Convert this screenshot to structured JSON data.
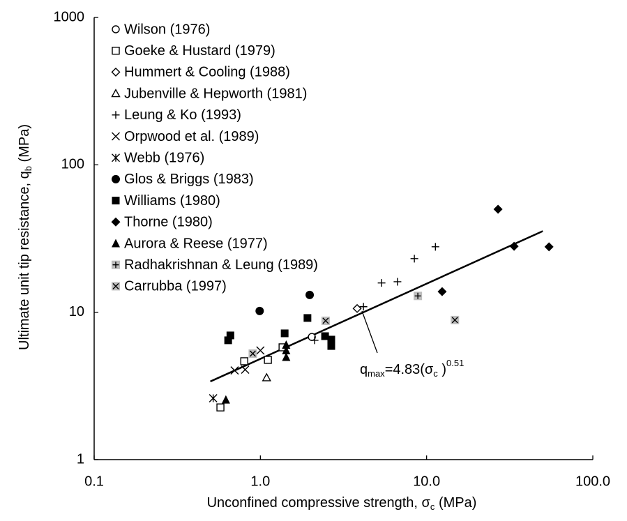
{
  "chart_data": {
    "type": "scatter",
    "x_scale": "log",
    "y_scale": "log",
    "xlim": [
      0.1,
      100
    ],
    "ylim": [
      1,
      1000
    ],
    "xticks": [
      0.1,
      {
        "value": 1,
        "label": "1.0"
      },
      {
        "value": 10,
        "label": "10.0"
      },
      {
        "value": 100,
        "label": "100.0"
      }
    ],
    "yticks": [
      1,
      10,
      100,
      1000
    ],
    "x_label": [
      {
        "text": "Unconfined compressive strength, σ",
        "baseline": "normal"
      },
      {
        "text": "c",
        "baseline": "sub"
      },
      {
        "text": " (MPa)",
        "baseline": "normal"
      }
    ],
    "y_label": [
      {
        "text": "Ultimate unit tip resistance, q",
        "baseline": "normal"
      },
      {
        "text": "b",
        "baseline": "sub"
      },
      {
        "text": " (MPa)",
        "baseline": "normal"
      }
    ],
    "legend": "upper left",
    "series": [
      {
        "name": "Wilson (1976)",
        "marker": "circle-open",
        "color": "#000000",
        "x": [
          2.04
        ],
        "values": [
          6.8
        ]
      },
      {
        "name": "Goeke & Hustard (1979)",
        "marker": "square-open",
        "color": "#000000",
        "x": [
          0.575,
          0.8,
          1.11,
          1.36
        ],
        "values": [
          2.26,
          4.65,
          4.75,
          5.78
        ]
      },
      {
        "name": "Hummert & Cooling (1988)",
        "marker": "diamond-open",
        "color": "#000000",
        "x": [
          3.82
        ],
        "values": [
          10.6
        ]
      },
      {
        "name": "Jubenville & Hepworth (1981)",
        "marker": "triangle-open",
        "color": "#000000",
        "x": [
          1.09
        ],
        "values": [
          3.6
        ]
      },
      {
        "name": "Leung & Ko (1993)",
        "marker": "plus",
        "color": "#000000",
        "x": [
          2.12,
          4.17,
          5.36,
          6.68,
          8.44,
          11.3
        ],
        "values": [
          6.45,
          10.9,
          15.8,
          16.1,
          23.1,
          27.8
        ]
      },
      {
        "name": "Orpwood et al. (1989)",
        "marker": "x",
        "color": "#000000",
        "x": [
          0.7,
          0.81,
          1.0
        ],
        "values": [
          4.03,
          4.08,
          5.5
        ]
      },
      {
        "name": "Webb (1976)",
        "marker": "star",
        "color": "#000000",
        "x": [
          0.52
        ],
        "values": [
          2.61
        ]
      },
      {
        "name": "Glos & Briggs (1983)",
        "marker": "circle",
        "color": "#000000",
        "x": [
          0.99,
          1.98
        ],
        "values": [
          10.2,
          13.1
        ]
      },
      {
        "name": "Williams (1980)",
        "marker": "square",
        "color": "#000000",
        "x": [
          0.64,
          0.66,
          1.4,
          1.92,
          2.45,
          2.67,
          2.67
        ],
        "values": [
          6.45,
          6.96,
          7.19,
          9.14,
          6.88,
          6.52,
          5.9
        ]
      },
      {
        "name": "Thorne (1980)",
        "marker": "diamond",
        "color": "#000000",
        "x": [
          12.4,
          26.9,
          33.6,
          54.5
        ],
        "values": [
          13.8,
          50,
          28,
          27.8
        ]
      },
      {
        "name": "Aurora & Reese (1977)",
        "marker": "triangle",
        "color": "#000000",
        "x": [
          0.62,
          1.43,
          1.43,
          1.43
        ],
        "values": [
          2.55,
          6.0,
          5.5,
          4.96
        ]
      },
      {
        "name": "Radhakrishnan & Leung (1989)",
        "marker": "square-plus",
        "color": "#bdbdbd",
        "x": [
          8.86
        ],
        "values": [
          12.9
        ]
      },
      {
        "name": "Carrubba (1997)",
        "marker": "square-x",
        "color": "#bdbdbd",
        "x": [
          0.9,
          2.47,
          14.8
        ],
        "values": [
          5.24,
          8.75,
          8.85
        ]
      }
    ],
    "trend_line": {
      "x": [
        0.5,
        50
      ],
      "values": [
        3.39,
        35.5
      ],
      "color": "#000000"
    },
    "annotation": [
      {
        "text": "q",
        "baseline": "normal"
      },
      {
        "text": "max",
        "baseline": "sub"
      },
      {
        "text": "=4.83(σ",
        "baseline": "normal"
      },
      {
        "text": "c",
        "baseline": "sub"
      },
      {
        "text": " )",
        "baseline": "normal"
      },
      {
        "text": "0.51",
        "baseline": "super"
      }
    ]
  }
}
